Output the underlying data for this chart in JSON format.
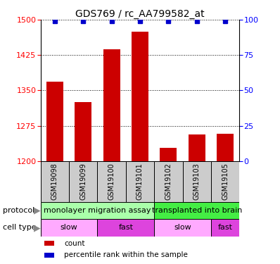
{
  "title": "GDS769 / rc_AA799582_at",
  "samples": [
    "GSM19098",
    "GSM19099",
    "GSM19100",
    "GSM19101",
    "GSM19102",
    "GSM19103",
    "GSM19105"
  ],
  "bar_values": [
    1368,
    1325,
    1437,
    1475,
    1228,
    1257,
    1258
  ],
  "percentile_values": [
    99,
    99,
    99,
    99,
    99,
    99,
    99
  ],
  "ylim_left": [
    1200,
    1500
  ],
  "ylim_right": [
    0,
    100
  ],
  "yticks_left": [
    1200,
    1275,
    1350,
    1425,
    1500
  ],
  "yticks_right": [
    0,
    25,
    50,
    75,
    100
  ],
  "bar_color": "#cc0000",
  "percentile_color": "#0000cc",
  "protocol_groups": [
    {
      "label": "monolayer migration assay",
      "start": 0,
      "end": 4,
      "color": "#aaffaa"
    },
    {
      "label": "transplanted into brain",
      "start": 4,
      "end": 7,
      "color": "#44ee44"
    }
  ],
  "cell_type_groups": [
    {
      "label": "slow",
      "start": 0,
      "end": 2,
      "color": "#ffaaff"
    },
    {
      "label": "fast",
      "start": 2,
      "end": 4,
      "color": "#dd44dd"
    },
    {
      "label": "slow",
      "start": 4,
      "end": 6,
      "color": "#ffaaff"
    },
    {
      "label": "fast",
      "start": 6,
      "end": 7,
      "color": "#dd44dd"
    }
  ],
  "protocol_label": "protocol",
  "celltype_label": "cell type",
  "legend_items": [
    {
      "label": "count",
      "color": "#cc0000",
      "marker": "s"
    },
    {
      "label": "percentile rank within the sample",
      "color": "#0000cc",
      "marker": "s"
    }
  ],
  "title_fontsize": 10,
  "tick_fontsize": 8,
  "sample_fontsize": 7,
  "annot_fontsize": 8,
  "bar_width": 0.6,
  "sample_color": "#cccccc"
}
